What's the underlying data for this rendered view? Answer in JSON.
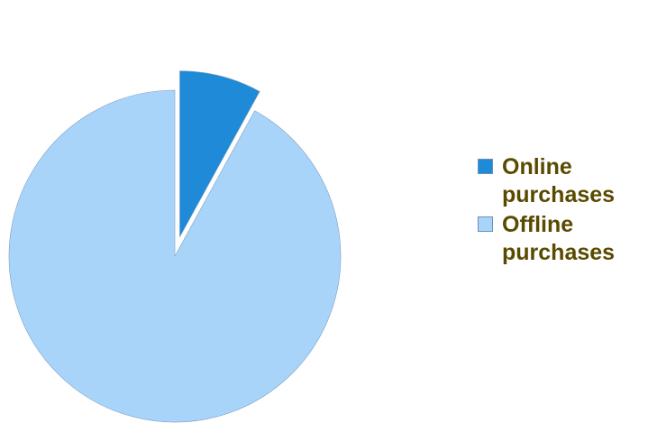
{
  "chart_data": {
    "type": "pie",
    "title": "",
    "slices": [
      {
        "label": "Online purchases",
        "value": 8,
        "color": "#1f8ad8",
        "exploded": true
      },
      {
        "label": "Offline purchases",
        "value": 92,
        "color": "#a9d4fa",
        "exploded": true
      }
    ],
    "legend_position": "right",
    "legend_text_color": "#5a4a00",
    "slice_stroke_color": "#7f9fbf"
  }
}
